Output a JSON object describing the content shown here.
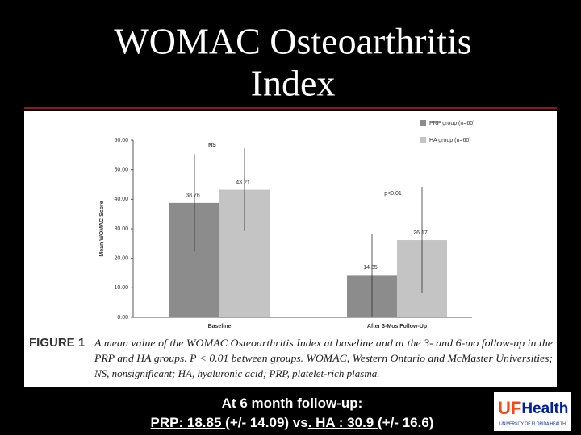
{
  "slide": {
    "title_lines": [
      "WOMAC Osteoarthritis",
      "Index"
    ],
    "footer_lines": [
      [
        "At 6 month follow-up:"
      ],
      [
        "PRP: 18.85 ",
        "(+/- 14.09) vs",
        ". HA : 30.9 ",
        "(+/- 16.6)"
      ]
    ],
    "footer_underlined": [
      [
        false
      ],
      [
        true,
        false,
        true,
        false
      ]
    ],
    "logo": {
      "uf": "UF",
      "health": "Health",
      "tagline": "UNIVERSITY OF FLORIDA HEALTH"
    }
  },
  "chart_data": {
    "type": "bar",
    "y_label": "Mean WOMAC Score",
    "categories": [
      "Baseline",
      "After 3-Mos Follow-Up"
    ],
    "series": [
      {
        "name": "PRP group (n=60)",
        "color": "#8c8c8c",
        "values": [
          38.76,
          14.35
        ],
        "errors": [
          16.5,
          14
        ]
      },
      {
        "name": "HA group (n=60)",
        "color": "#c4c4c4",
        "values": [
          43.21,
          26.17
        ],
        "errors": [
          14,
          18
        ]
      }
    ],
    "annotations": [
      "NS",
      "p<0.01"
    ],
    "ylim": [
      0,
      60
    ],
    "yticks": [
      {
        "value": 0,
        "label": "0.00"
      },
      {
        "value": 10,
        "label": "10.00"
      },
      {
        "value": 20,
        "label": "20.00"
      },
      {
        "value": 30,
        "label": "30.00"
      },
      {
        "value": 40,
        "label": "40.00"
      },
      {
        "value": 50,
        "label": "50.00"
      },
      {
        "value": 60,
        "label": "60.00"
      }
    ],
    "legend": "top-right",
    "figure_label": "FIGURE 1",
    "caption_lines": [
      "A mean value of the WOMAC Osteoarthritis Index at baseline and at the 3- and 6-mo follow-up in the",
      "PRP and HA groups. P < 0.01 between groups. WOMAC, Western Ontario and McMaster Universities;",
      "NS, nonsignificant; HA, hyaluronic acid; PRP, platelet-rich plasma."
    ]
  }
}
